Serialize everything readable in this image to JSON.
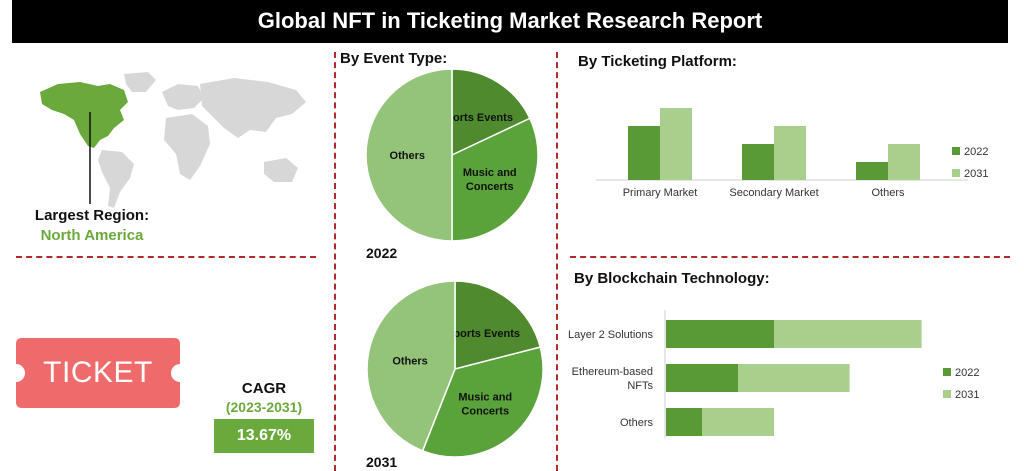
{
  "header": {
    "title": "Global NFT in Ticketing Market Research Report"
  },
  "region": {
    "label": "Largest Region:",
    "value": "North America"
  },
  "ticket": {
    "text": "TICKET"
  },
  "cagr": {
    "label": "CAGR",
    "period": "(2023-2031)",
    "value": "13.67%"
  },
  "sections": {
    "event_type": "By Event Type:",
    "platform": "By Ticketing Platform:",
    "blockchain": "By Blockchain Technology:"
  },
  "colors": {
    "dark_green": "#5a9a36",
    "mid_green": "#6aaa3c",
    "light_green": "#a8cf8c",
    "pie_sports": "#4f8a2e",
    "pie_music": "#5aa23a",
    "pie_others": "#94c47a",
    "ticket_red": "#ef6a6a",
    "divider": "#b22a2a"
  },
  "chart_data": [
    {
      "type": "pie",
      "title": "2022",
      "labels": [
        "Sports Events",
        "Music and Concerts",
        "Others"
      ],
      "values": [
        18,
        32,
        50
      ]
    },
    {
      "type": "pie",
      "title": "2031",
      "labels": [
        "Sports Events",
        "Music and Concerts",
        "Others"
      ],
      "values": [
        21,
        35,
        44
      ]
    },
    {
      "type": "bar",
      "title": "",
      "categories": [
        "Primary Market",
        "Secondary Market",
        "Others"
      ],
      "series": [
        {
          "name": "2022",
          "values": [
            60,
            40,
            20
          ]
        },
        {
          "name": "2031",
          "values": [
            80,
            60,
            40
          ]
        }
      ],
      "ylim": [
        0,
        100
      ],
      "legend": "right"
    },
    {
      "type": "bar",
      "orientation": "horizontal",
      "stacked": true,
      "title": "",
      "categories": [
        "Layer 2 Solutions",
        "Ethereum-based NFTs",
        "Others"
      ],
      "series": [
        {
          "name": "2022",
          "values": [
            30,
            20,
            10
          ]
        },
        {
          "name": "2031",
          "values": [
            41,
            31,
            20
          ]
        }
      ],
      "xlim": [
        0,
        75
      ],
      "legend": "right"
    }
  ]
}
